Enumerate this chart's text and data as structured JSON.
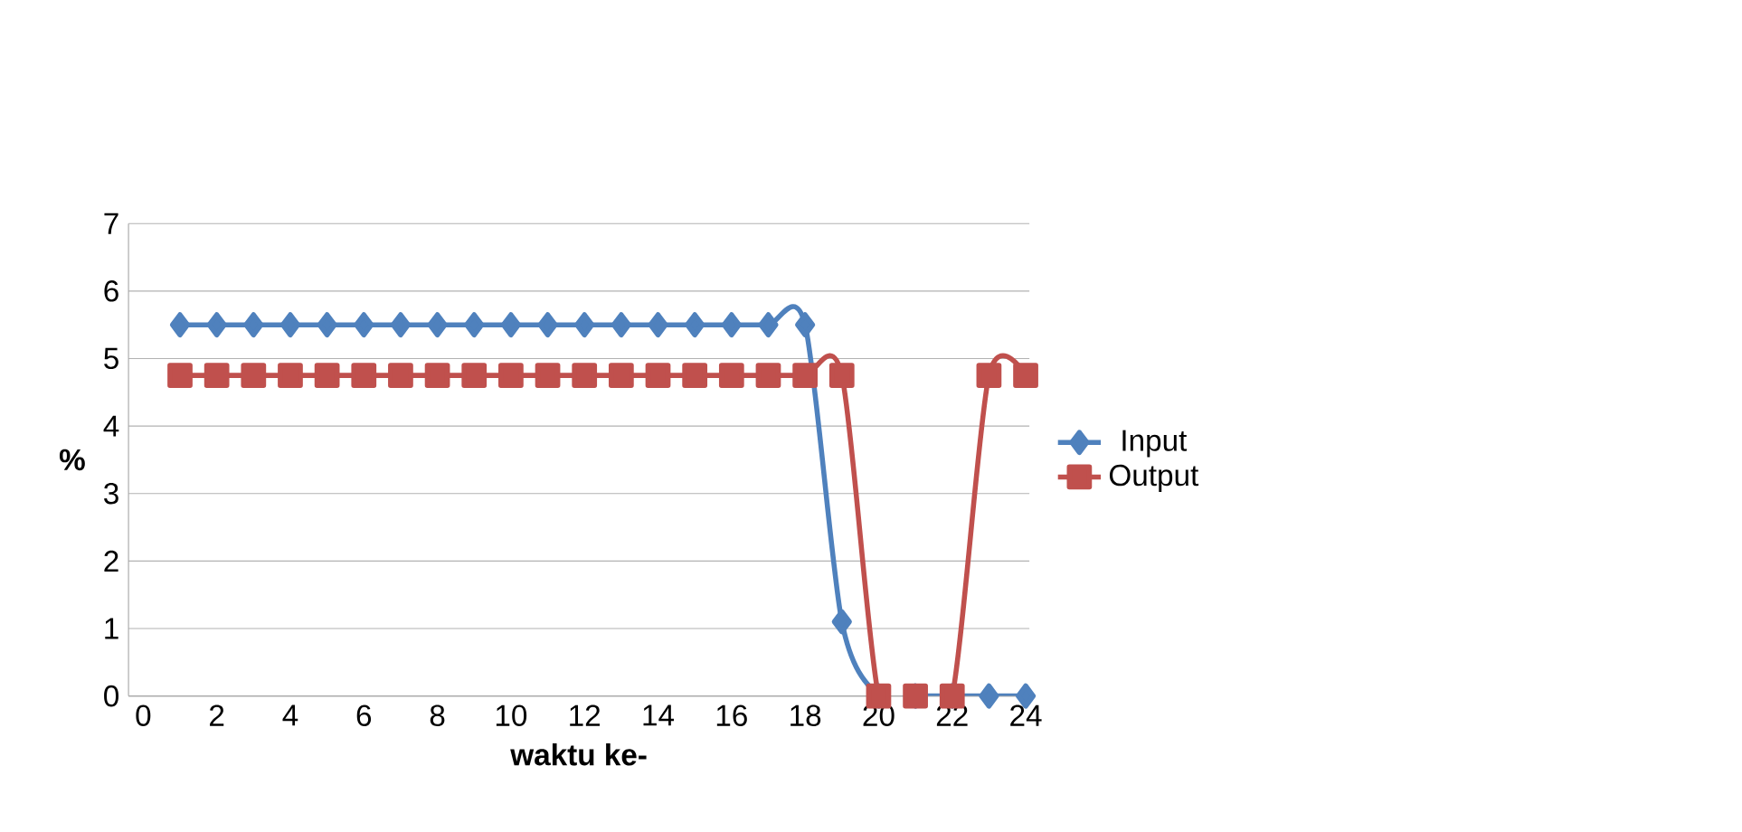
{
  "chart_data": {
    "type": "line",
    "xlabel": "waktu ke-",
    "ylabel": "%",
    "x": [
      1,
      2,
      3,
      4,
      5,
      6,
      7,
      8,
      9,
      10,
      11,
      12,
      13,
      14,
      15,
      16,
      17,
      18,
      19,
      20,
      21,
      22,
      23,
      24
    ],
    "series": [
      {
        "name": "Input",
        "color": "#4f81bd",
        "marker": "diamond",
        "values": [
          5.5,
          5.5,
          5.5,
          5.5,
          5.5,
          5.5,
          5.5,
          5.5,
          5.5,
          5.5,
          5.5,
          5.5,
          5.5,
          5.5,
          5.5,
          5.5,
          5.5,
          5.5,
          1.1,
          0,
          0,
          0,
          0,
          0
        ]
      },
      {
        "name": "Output",
        "color": "#c0504d",
        "marker": "square",
        "values": [
          4.75,
          4.75,
          4.75,
          4.75,
          4.75,
          4.75,
          4.75,
          4.75,
          4.75,
          4.75,
          4.75,
          4.75,
          4.75,
          4.75,
          4.75,
          4.75,
          4.75,
          4.75,
          4.75,
          0,
          0,
          0,
          4.75,
          4.75
        ]
      }
    ],
    "xlim": [
      -0.4,
      24.1
    ],
    "xticks": [
      0,
      2,
      4,
      6,
      8,
      10,
      12,
      14,
      16,
      18,
      20,
      22,
      24
    ],
    "ylim": [
      0,
      7
    ],
    "yticks": [
      0,
      1,
      2,
      3,
      4,
      5,
      6,
      7
    ],
    "grid": "y",
    "legend": "right"
  }
}
